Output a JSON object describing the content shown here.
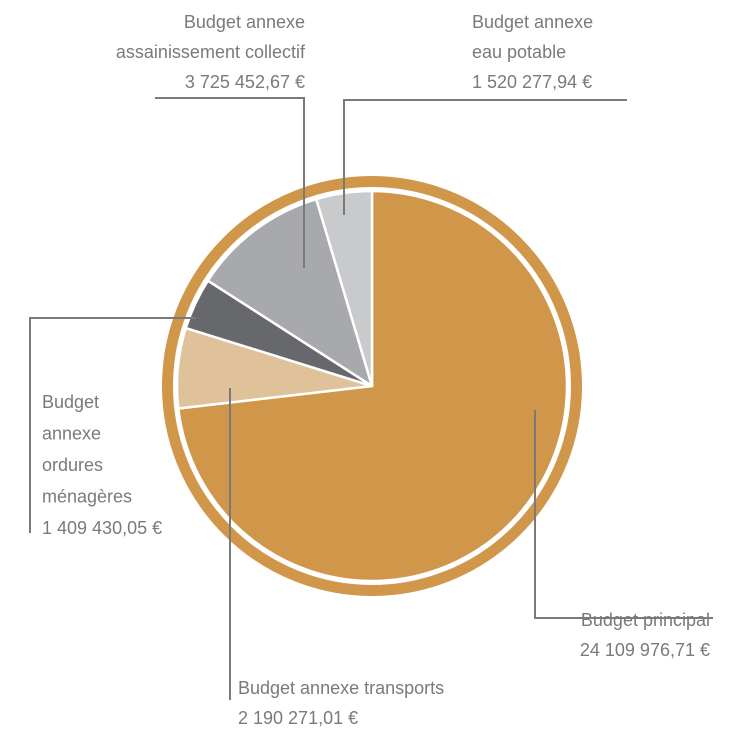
{
  "chart_data": {
    "type": "pie",
    "title": "",
    "colors": {
      "ring": "#D0964A",
      "leader": "#7a7a7a",
      "label_text": "#7a7a7a"
    },
    "slices": [
      {
        "name": "Budget principal",
        "value": 24109976.71,
        "value_label": "24 109 976,71 €",
        "label_lines": [
          "Budget principal",
          "24 109 976,71 €"
        ],
        "color": "#D0964A"
      },
      {
        "name": "Budget annexe transports",
        "value": 2190271.01,
        "value_label": "2 190 271,01 €",
        "label_lines": [
          "Budget annexe transports",
          "2 190 271,01 €"
        ],
        "color": "#DFC299"
      },
      {
        "name": "Budget annexe ordures ménagères",
        "value": 1409430.05,
        "value_label": "1 409 430,05 €",
        "label_lines": [
          "Budget",
          "annexe",
          "ordures",
          "ménagères",
          "1 409 430,05 €"
        ],
        "color": "#67686C"
      },
      {
        "name": "Budget annexe assainissement collectif",
        "value": 3725452.67,
        "value_label": "3 725 452,67 €",
        "label_lines": [
          "Budget annexe",
          "assainissement collectif",
          "3 725 452,67 €"
        ],
        "color": "#A8A9AD"
      },
      {
        "name": "Budget annexe eau potable",
        "value": 1520277.94,
        "value_label": "1 520 277,94 €",
        "label_lines": [
          "Budget annexe",
          "eau potable",
          "1 520 277,94 €"
        ],
        "color": "#C9CACC"
      }
    ]
  }
}
